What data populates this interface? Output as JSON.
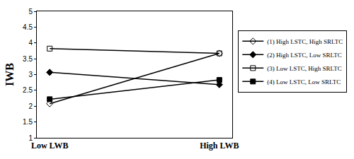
{
  "chart_data": {
    "type": "line",
    "categories": [
      "Low LWB",
      "High LWB"
    ],
    "y_label": "IWB",
    "ylim": [
      1,
      5
    ],
    "yticks": [
      1,
      1.5,
      2,
      2.5,
      3,
      3.5,
      4,
      4.5,
      5
    ],
    "grid": false,
    "legend": "right",
    "series": [
      {
        "name": "(1) High LSTC, High SRLTC",
        "color": "#000000",
        "marker": "diamond-open",
        "line_style": "solid",
        "values": [
          2.08,
          3.67
        ]
      },
      {
        "name": "(2) High LSTC, Low SRLTC",
        "color": "#000000",
        "marker": "diamond",
        "line_style": "solid",
        "values": [
          3.07,
          2.68
        ]
      },
      {
        "name": "(3) Low LSTC, High SRLTC",
        "color": "#000000",
        "marker": "square-open",
        "line_style": "solid",
        "values": [
          3.82,
          3.67
        ]
      },
      {
        "name": "(4) Low LSTC, Low SRLTC",
        "color": "#000000",
        "marker": "square",
        "line_style": "solid",
        "values": [
          2.22,
          2.83
        ]
      }
    ]
  }
}
